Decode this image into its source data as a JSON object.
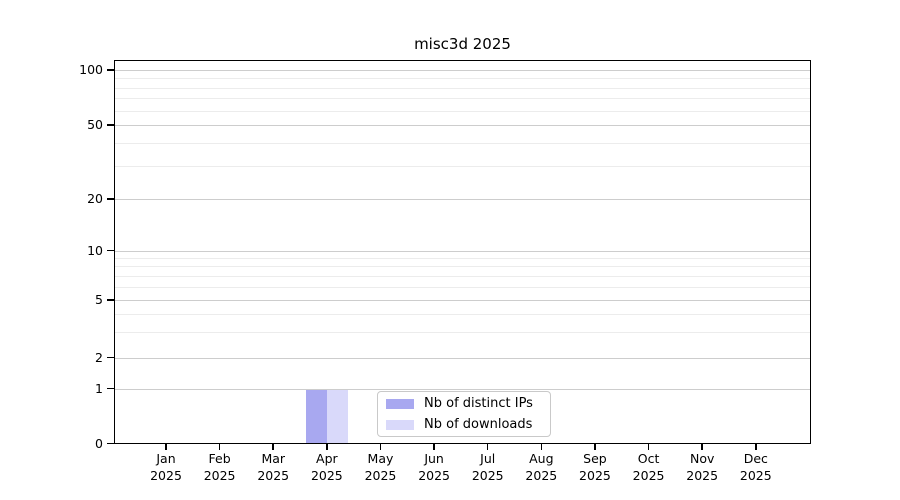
{
  "chart_data": {
    "type": "bar",
    "title": "misc3d 2025",
    "categories": [
      "Jan 2025",
      "Feb 2025",
      "Mar 2025",
      "Apr 2025",
      "May 2025",
      "Jun 2025",
      "Jul 2025",
      "Aug 2025",
      "Sep 2025",
      "Oct 2025",
      "Nov 2025",
      "Dec 2025"
    ],
    "x_tick_labels": [
      [
        "Jan",
        "2025"
      ],
      [
        "Feb",
        "2025"
      ],
      [
        "Mar",
        "2025"
      ],
      [
        "Apr",
        "2025"
      ],
      [
        "May",
        "2025"
      ],
      [
        "Jun",
        "2025"
      ],
      [
        "Jul",
        "2025"
      ],
      [
        "Aug",
        "2025"
      ],
      [
        "Sep",
        "2025"
      ],
      [
        "Oct",
        "2025"
      ],
      [
        "Nov",
        "2025"
      ],
      [
        "Dec",
        "2025"
      ]
    ],
    "series": [
      {
        "name": "Nb of distinct IPs",
        "color": "#a8a8f0",
        "values": [
          0,
          0,
          0,
          1,
          0,
          0,
          0,
          0,
          0,
          0,
          0,
          0
        ]
      },
      {
        "name": "Nb of downloads",
        "color": "#d9d9fa",
        "values": [
          0,
          0,
          0,
          1,
          0,
          0,
          0,
          0,
          0,
          0,
          0,
          0
        ]
      }
    ],
    "y_axis": {
      "ticks": [
        0,
        1,
        2,
        5,
        10,
        20,
        50,
        100
      ],
      "minor_ticks": [
        3,
        4,
        6,
        7,
        8,
        9,
        30,
        40,
        60,
        70,
        80,
        90
      ],
      "scale": "log above 1, linear 0-1",
      "range": [
        0,
        115
      ]
    },
    "legend": {
      "entries": [
        "Nb of distinct IPs",
        "Nb of downloads"
      ],
      "position": "inside lower-center"
    },
    "grid": {
      "horizontal_major": true,
      "horizontal_minor": true,
      "vertical": false
    },
    "colors": {
      "background": "#ffffff",
      "bar_distinct_ips": "#a8a8f0",
      "bar_downloads": "#d9d9fa",
      "major_grid": "#cdcdcd",
      "minor_grid": "#ececec",
      "axis": "#000000",
      "text": "#000000"
    }
  }
}
